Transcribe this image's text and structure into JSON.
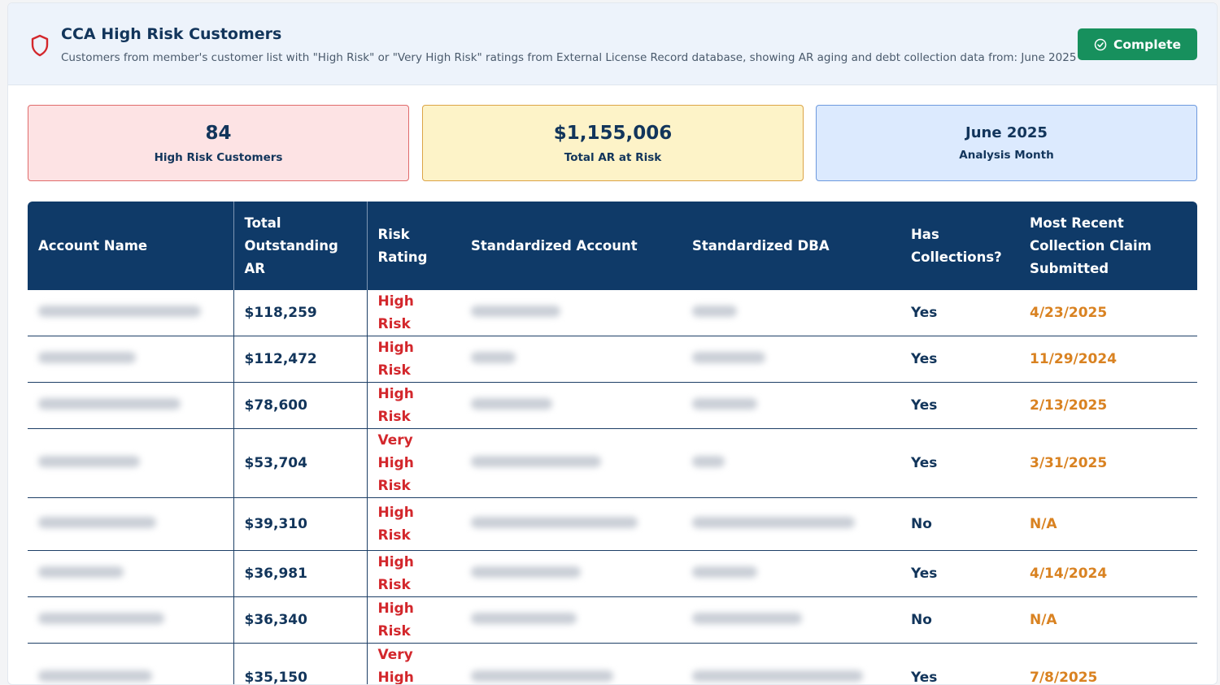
{
  "header": {
    "title": "CCA High Risk Customers",
    "subtitle": "Customers from member's customer list with \"High Risk\" or \"Very High Risk\" ratings from External License Record database, showing AR aging and debt collection data from: June 2025",
    "complete_label": "Complete",
    "shield_icon": "shield-icon",
    "check_icon": "check-circle-icon"
  },
  "stats": [
    {
      "value": "84",
      "label": "High Risk Customers"
    },
    {
      "value": "$1,155,006",
      "label": "Total AR at Risk"
    },
    {
      "value": "June 2025",
      "label": "Analysis Month"
    }
  ],
  "colors": {
    "navy": "#0f3a68",
    "risk_red": "#d3272c",
    "date_orange": "#d98221",
    "complete_green": "#17905d"
  },
  "table": {
    "columns": [
      "Account Name",
      "Total Outstanding AR",
      "Risk Rating",
      "Standardized Account",
      "Standardized DBA",
      "Has Collections?",
      "Most Recent Collection Claim Submitted"
    ],
    "rows": [
      {
        "ar": "$118,259",
        "risk": "High Risk",
        "collections": "Yes",
        "date": "4/23/2025"
      },
      {
        "ar": "$112,472",
        "risk": "High Risk",
        "collections": "Yes",
        "date": "11/29/2024"
      },
      {
        "ar": "$78,600",
        "risk": "High Risk",
        "collections": "Yes",
        "date": "2/13/2025"
      },
      {
        "ar": "$53,704",
        "risk": "Very High Risk",
        "collections": "Yes",
        "date": "3/31/2025"
      },
      {
        "ar": "$39,310",
        "risk": "High Risk",
        "collections": "No",
        "date": "N/A"
      },
      {
        "ar": "$36,981",
        "risk": "High Risk",
        "collections": "Yes",
        "date": "4/14/2024"
      },
      {
        "ar": "$36,340",
        "risk": "High Risk",
        "collections": "No",
        "date": "N/A"
      },
      {
        "ar": "$35,150",
        "risk": "Very High Risk",
        "collections": "Yes",
        "date": "7/8/2025"
      }
    ]
  }
}
